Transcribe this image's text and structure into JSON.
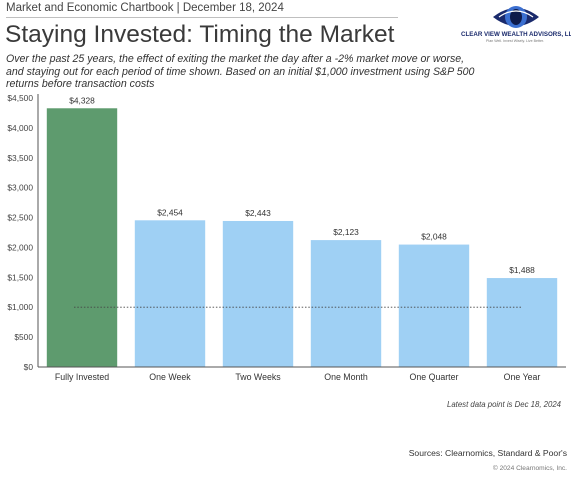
{
  "header": {
    "chartbook_label": "Market and Economic Chartbook | December 18, 2024"
  },
  "logo": {
    "name": "CLEAR VIEW WEALTH ADVISORS, LLC",
    "tagline": "Plan Well. Invest Wisely. Live Better.",
    "icon": "eye-icon",
    "colors": {
      "primary": "#1a2a6c",
      "secondary": "#3b6fd0"
    }
  },
  "chart_data": {
    "type": "bar",
    "title": "Staying Invested: Timing the Market",
    "subtitle": "Over the past 25 years, the effect of exiting the market the day after a -2% market move or worse, and staying out for each period of time shown. Based on an initial $1,000 investment using S&P 500 returns before transaction costs",
    "categories": [
      "Fully Invested",
      "One Week",
      "Two Weeks",
      "One Month",
      "One Quarter",
      "One Year"
    ],
    "values": [
      4328,
      2454,
      2443,
      2123,
      2048,
      1488
    ],
    "value_labels": [
      "$4,328",
      "$2,454",
      "$2,443",
      "$2,123",
      "$2,048",
      "$1,488"
    ],
    "bar_colors": [
      "#5e9b6e",
      "#9fd0f4",
      "#9fd0f4",
      "#9fd0f4",
      "#9fd0f4",
      "#9fd0f4"
    ],
    "ylim": [
      0,
      4500
    ],
    "yticks": [
      0,
      500,
      1000,
      1500,
      2000,
      2500,
      3000,
      3500,
      4000,
      4500
    ],
    "ytick_labels": [
      "$0",
      "$500",
      "$1,000",
      "$1,500",
      "$2,000",
      "$2,500",
      "$3,000",
      "$3,500",
      "$4,000",
      "$4,500"
    ],
    "reference_line": {
      "value": 1000,
      "style": "dotted"
    },
    "xlabel": "",
    "ylabel": "",
    "grid": false
  },
  "footer": {
    "latest_data_note": "Latest data point is Dec 18, 2024",
    "sources": "Sources: Clearnomics, Standard & Poor's",
    "copyright": "© 2024 Clearnomics, Inc."
  }
}
